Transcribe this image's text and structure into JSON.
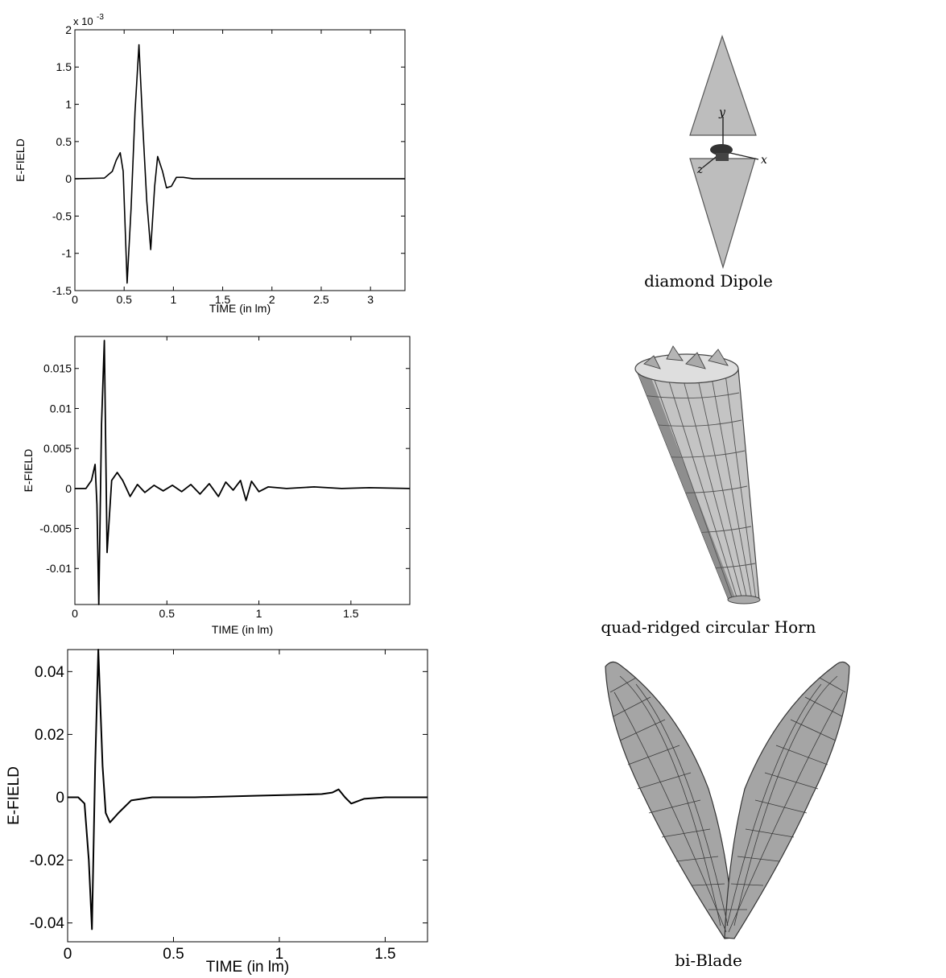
{
  "chart_data": [
    {
      "type": "line",
      "xlabel": "TIME (in lm)",
      "ylabel": "E-FIELD",
      "exponent_label": "x 10",
      "exponent_power": "-3",
      "xlim": [
        0,
        3.35
      ],
      "ylim": [
        -1.5,
        2
      ],
      "xticks": [
        0,
        0.5,
        1,
        1.5,
        2,
        2.5,
        3
      ],
      "xtick_labels": [
        "0",
        "0.5",
        "1",
        "1.5",
        "2",
        "2.5",
        "3"
      ],
      "yticks": [
        -1.5,
        -1,
        -0.5,
        0,
        0.5,
        1,
        1.5,
        2
      ],
      "ytick_labels": [
        "-1.5",
        "-1",
        "-0.5",
        "0",
        "0.5",
        "1",
        "1.5",
        "2"
      ],
      "grid": false,
      "series": [
        {
          "x": [
            0,
            0.3,
            0.38,
            0.42,
            0.46,
            0.49,
            0.53,
            0.57,
            0.61,
            0.65,
            0.69,
            0.73,
            0.77,
            0.81,
            0.84,
            0.89,
            0.93,
            0.98,
            1.03,
            1.1,
            1.2,
            1.5,
            2.0,
            2.5,
            3.0,
            3.35
          ],
          "y": [
            0,
            0.01,
            0.1,
            0.25,
            0.35,
            0.1,
            -1.4,
            -0.4,
            0.9,
            1.8,
            0.7,
            -0.3,
            -0.95,
            -0.1,
            0.3,
            0.1,
            -0.12,
            -0.1,
            0.02,
            0.02,
            0,
            0,
            0,
            0,
            0,
            0
          ]
        }
      ]
    },
    {
      "type": "line",
      "xlabel": "TIME (in lm)",
      "ylabel": "E-FIELD",
      "xlim": [
        0,
        1.82
      ],
      "ylim": [
        -0.0145,
        0.019
      ],
      "xticks": [
        0,
        0.5,
        1,
        1.5
      ],
      "xtick_labels": [
        "0",
        "0.5",
        "1",
        "1.5"
      ],
      "yticks": [
        -0.01,
        -0.005,
        0,
        0.005,
        0.01,
        0.015
      ],
      "ytick_labels": [
        "-0.01",
        "-0.005",
        "0",
        "0.005",
        "0.01",
        "0.015"
      ],
      "grid": false,
      "series": [
        {
          "x": [
            0,
            0.06,
            0.09,
            0.11,
            0.12,
            0.13,
            0.145,
            0.16,
            0.175,
            0.2,
            0.23,
            0.26,
            0.3,
            0.34,
            0.38,
            0.43,
            0.48,
            0.53,
            0.58,
            0.63,
            0.68,
            0.73,
            0.78,
            0.82,
            0.86,
            0.9,
            0.93,
            0.96,
            1.0,
            1.05,
            1.15,
            1.3,
            1.45,
            1.6,
            1.82
          ],
          "y": [
            0,
            0,
            0.001,
            0.003,
            -0.002,
            -0.0145,
            0.008,
            0.0185,
            -0.008,
            0.001,
            0.002,
            0.001,
            -0.001,
            0.0005,
            -0.0005,
            0.0004,
            -0.0003,
            0.0004,
            -0.0004,
            0.0005,
            -0.0007,
            0.0006,
            -0.001,
            0.0008,
            -0.0002,
            0.001,
            -0.0015,
            0.0009,
            -0.0004,
            0.0002,
            0,
            0.0002,
            0,
            0.0001,
            0
          ]
        }
      ]
    },
    {
      "type": "line",
      "xlabel": "TIME (in lm)",
      "ylabel": "E-FIELD",
      "xlim": [
        0,
        1.7
      ],
      "ylim": [
        -0.046,
        0.047
      ],
      "xticks": [
        0,
        0.5,
        1,
        1.5
      ],
      "xtick_labels": [
        "0",
        "0.5",
        "1",
        "1.5"
      ],
      "yticks": [
        -0.04,
        -0.02,
        0,
        0.02,
        0.04
      ],
      "ytick_labels": [
        "-0.04",
        "-0.02",
        "0",
        "0.02",
        "0.04"
      ],
      "grid": false,
      "series": [
        {
          "x": [
            0,
            0.05,
            0.08,
            0.1,
            0.115,
            0.13,
            0.145,
            0.165,
            0.18,
            0.2,
            0.24,
            0.3,
            0.4,
            0.6,
            0.9,
            1.1,
            1.2,
            1.25,
            1.28,
            1.31,
            1.34,
            1.4,
            1.5,
            1.6,
            1.7
          ],
          "y": [
            0,
            0,
            -0.002,
            -0.02,
            -0.042,
            0.01,
            0.047,
            0.01,
            -0.005,
            -0.008,
            -0.005,
            -0.001,
            0,
            0,
            0.0005,
            0.0008,
            0.001,
            0.0015,
            0.0025,
            0,
            -0.002,
            -0.0005,
            0,
            0,
            0
          ]
        }
      ]
    }
  ],
  "captions": [
    "diamond Dipole",
    "quad-ridged circular Horn",
    "bi-Blade"
  ],
  "axis_labels": {
    "x_in_diagram": "x",
    "y_in_diagram": "y",
    "z_in_diagram": "z"
  }
}
